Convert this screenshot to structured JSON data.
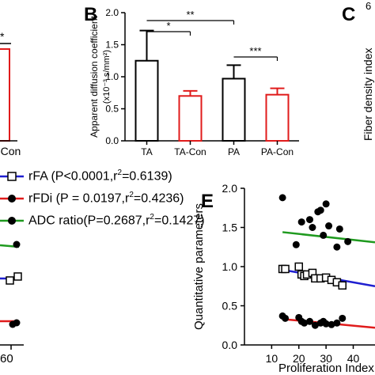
{
  "panel_labels": {
    "b": "B",
    "c": "C",
    "e": "E"
  },
  "panel_a_fragment": {
    "tick_label": "-Con",
    "sig": "*"
  },
  "panel_c_fragment": {
    "ylabel": "Fiber density index",
    "tick": "6"
  },
  "panel_d_fragment": {
    "x_tick": "60"
  },
  "legend": [
    {
      "label": "rFA (P<0.0001,r",
      "sup": "2",
      "rest": "=0.6139)",
      "marker": "open-square",
      "color": "#1f1fd0"
    },
    {
      "label": "rFDi (P = 0.0197,r",
      "sup": "2",
      "rest": "=0.4236)",
      "marker": "filled-circle",
      "color": "#e01b1b"
    },
    {
      "label": "ADC ratio(P=0.2687,r",
      "sup": "2",
      "rest": "=0.1427)",
      "marker": "filled-circle",
      "color": "#1f9a1f"
    }
  ],
  "colors": {
    "black": "#000000",
    "red": "#e01b1b",
    "blue": "#1f1fd0",
    "green": "#1f9a1f"
  },
  "chart_data": [
    {
      "id": "B",
      "type": "bar",
      "ylabel": "Apparent diffusion coefficient",
      "ylabel2": "(x10⁻³ s/mm²)",
      "categories": [
        "TA",
        "TA-Con",
        "PA",
        "PA-Con"
      ],
      "values": [
        1.25,
        0.7,
        0.97,
        0.72
      ],
      "errors": [
        0.47,
        0.08,
        0.21,
        0.1
      ],
      "bar_colors": [
        "#000000",
        "#e01b1b",
        "#000000",
        "#e01b1b"
      ],
      "ylim": [
        0,
        2.0
      ],
      "yticks": [
        "0.0",
        "0.5",
        "1.0",
        "1.5",
        "2.0"
      ],
      "significance": [
        {
          "from": 0,
          "to": 1,
          "label": "*"
        },
        {
          "from": 0,
          "to": 2,
          "label": "**"
        },
        {
          "from": 2,
          "to": 3,
          "label": "***"
        }
      ]
    },
    {
      "id": "E",
      "type": "scatter",
      "xlabel": "Proliferation Index",
      "ylabel": "Quantitative parameters",
      "xlim": [
        0,
        48
      ],
      "ylim": [
        0.0,
        2.0
      ],
      "xticks": [
        "10",
        "20",
        "30",
        "40"
      ],
      "yticks": [
        "0.0",
        "0.5",
        "1.0",
        "1.5",
        "2.0"
      ],
      "series": [
        {
          "name": "ADC ratio",
          "marker": "filled-circle",
          "color": "#000000",
          "points": [
            [
              14,
              1.88
            ],
            [
              19,
              1.28
            ],
            [
              21,
              1.57
            ],
            [
              24,
              1.6
            ],
            [
              25,
              1.5
            ],
            [
              27,
              1.7
            ],
            [
              28,
              1.72
            ],
            [
              29,
              1.4
            ],
            [
              30,
              1.8
            ],
            [
              31,
              1.52
            ],
            [
              34,
              1.25
            ],
            [
              35,
              1.48
            ],
            [
              38,
              1.32
            ]
          ],
          "fit": {
            "color": "#1f9a1f",
            "x": [
              14,
              48
            ],
            "y": [
              1.44,
              1.31
            ]
          }
        },
        {
          "name": "rFA",
          "marker": "open-square",
          "color": "#000000",
          "points": [
            [
              14,
              0.97
            ],
            [
              15,
              0.97
            ],
            [
              20,
              1.0
            ],
            [
              21,
              0.9
            ],
            [
              22,
              0.88
            ],
            [
              23,
              0.9
            ],
            [
              25,
              0.92
            ],
            [
              26,
              0.85
            ],
            [
              28,
              0.85
            ],
            [
              30,
              0.86
            ],
            [
              32,
              0.83
            ],
            [
              34,
              0.8
            ],
            [
              36,
              0.76
            ]
          ],
          "fit": {
            "color": "#1f1fd0",
            "x": [
              14,
              48
            ],
            "y": [
              0.96,
              0.75
            ]
          }
        },
        {
          "name": "rFDi",
          "marker": "filled-circle",
          "color": "#000000",
          "points": [
            [
              14,
              0.37
            ],
            [
              15,
              0.34
            ],
            [
              20,
              0.35
            ],
            [
              21,
              0.3
            ],
            [
              22,
              0.28
            ],
            [
              24,
              0.3
            ],
            [
              26,
              0.25
            ],
            [
              28,
              0.28
            ],
            [
              29,
              0.3
            ],
            [
              30,
              0.27
            ],
            [
              32,
              0.26
            ],
            [
              34,
              0.28
            ],
            [
              36,
              0.34
            ]
          ],
          "fit": {
            "color": "#e01b1b",
            "x": [
              14,
              48
            ],
            "y": [
              0.33,
              0.22
            ]
          }
        }
      ]
    }
  ]
}
